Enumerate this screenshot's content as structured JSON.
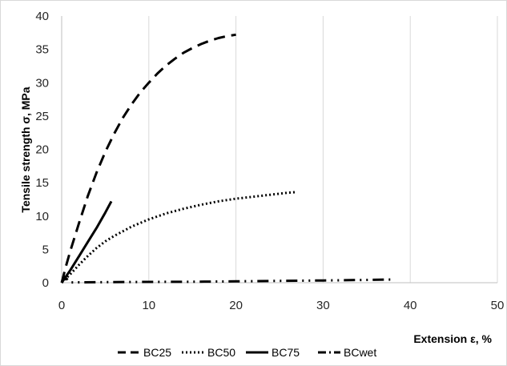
{
  "chart_data": {
    "type": "line",
    "title": "",
    "xlabel": "Extension ε, %",
    "ylabel": "Tensile strength σ, MPa",
    "xlim": [
      0,
      50
    ],
    "ylim": [
      0,
      40
    ],
    "x_ticks": [
      0,
      10,
      20,
      30,
      40,
      50
    ],
    "y_ticks": [
      0,
      5,
      10,
      15,
      20,
      25,
      30,
      35,
      40
    ],
    "grid": "vertical major gridlines",
    "legend_position": "bottom",
    "series": [
      {
        "name": "BC25",
        "style": "dashed",
        "color": "#000000",
        "x": [
          0,
          0.5,
          1,
          2,
          3,
          4,
          5,
          6,
          7,
          8,
          9,
          10,
          11,
          12,
          13,
          14,
          15,
          16,
          17,
          18,
          19,
          20
        ],
        "y": [
          0,
          2.5,
          4.8,
          9,
          13,
          16.5,
          19.6,
          22.3,
          24.7,
          26.7,
          28.5,
          30,
          31.4,
          32.6,
          33.6,
          34.5,
          35.2,
          35.8,
          36.3,
          36.7,
          37.0,
          37.2
        ]
      },
      {
        "name": "BC50",
        "style": "dotted",
        "color": "#000000",
        "x": [
          0,
          1,
          2,
          3,
          4,
          5,
          6,
          7,
          8,
          10,
          12,
          14,
          16,
          18,
          20,
          22,
          24,
          26,
          27
        ],
        "y": [
          0,
          1.3,
          2.7,
          4,
          5.2,
          6.2,
          7.0,
          7.7,
          8.4,
          9.5,
          10.4,
          11.1,
          11.7,
          12.2,
          12.6,
          12.9,
          13.2,
          13.5,
          13.6
        ]
      },
      {
        "name": "BC75",
        "style": "solid",
        "color": "#000000",
        "x": [
          0,
          1,
          2,
          3,
          4,
          5,
          5.7
        ],
        "y": [
          0,
          1.9,
          4.0,
          6.1,
          8.2,
          10.5,
          12.2
        ]
      },
      {
        "name": "BCwet",
        "style": "dash-dot-dot",
        "color": "#000000",
        "x": [
          0,
          0.3,
          1,
          5,
          10,
          15,
          20,
          25,
          30,
          35,
          38
        ],
        "y": [
          0,
          0.9,
          0.05,
          0.08,
          0.12,
          0.15,
          0.2,
          0.28,
          0.34,
          0.42,
          0.48
        ]
      }
    ]
  }
}
